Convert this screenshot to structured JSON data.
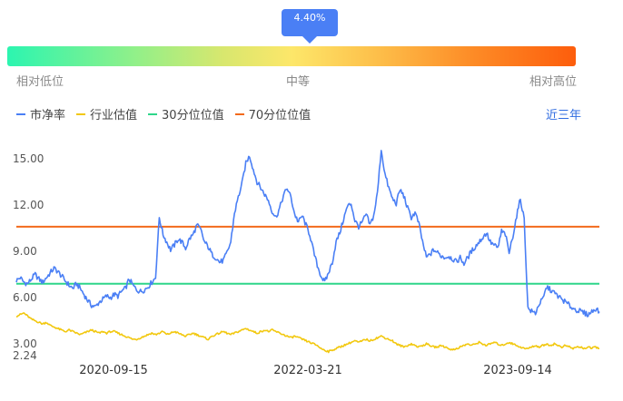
{
  "marker": {
    "value_label": "4.40%",
    "position_fraction": 0.53
  },
  "scale": {
    "low": "相对低位",
    "mid": "中等",
    "high": "相对高位"
  },
  "legend": [
    {
      "label": "市净率",
      "color": "#4a7ff5"
    },
    {
      "label": "行业估值",
      "color": "#f2c80f"
    },
    {
      "label": "30分位位值",
      "color": "#2ed68a"
    },
    {
      "label": "70分位位值",
      "color": "#f26a1b"
    }
  ],
  "period": "近三年",
  "chart_data": {
    "type": "line",
    "ylim": [
      2.24,
      16.0
    ],
    "y_ticks": [
      "2.24",
      "3.00",
      "6.00",
      "9.00",
      "12.00",
      "15.00"
    ],
    "x_ticks": [
      "2020-09-15",
      "2022-03-21",
      "2023-09-14"
    ],
    "hlines": [
      {
        "name": "30分位位值",
        "value": 6.9
      },
      {
        "name": "70分位位值",
        "value": 10.6
      }
    ],
    "series": [
      {
        "name": "市净率",
        "values": [
          7.1,
          7.3,
          7.0,
          6.9,
          7.2,
          7.5,
          7.2,
          7.0,
          7.3,
          7.6,
          7.9,
          7.7,
          7.4,
          7.1,
          6.8,
          6.6,
          6.9,
          6.6,
          6.2,
          5.8,
          5.5,
          5.4,
          5.7,
          5.9,
          6.1,
          6.0,
          6.2,
          6.1,
          6.4,
          6.6,
          7.2,
          6.8,
          6.5,
          6.4,
          6.5,
          6.7,
          7.0,
          7.3,
          11.2,
          10.1,
          9.6,
          9.1,
          9.4,
          9.8,
          9.6,
          9.2,
          9.8,
          10.1,
          10.7,
          10.4,
          9.6,
          9.3,
          8.8,
          8.6,
          8.3,
          8.4,
          8.9,
          9.6,
          11.5,
          12.5,
          13.4,
          14.7,
          15.2,
          14.3,
          13.5,
          13.1,
          12.7,
          12.3,
          11.6,
          11.2,
          11.8,
          12.6,
          13.1,
          12.5,
          11.4,
          10.9,
          11.3,
          10.7,
          10.1,
          9.0,
          8.1,
          7.4,
          7.0,
          7.6,
          8.3,
          9.6,
          10.2,
          11.1,
          11.9,
          12.1,
          11.0,
          10.6,
          10.9,
          11.4,
          10.7,
          11.3,
          12.8,
          15.6,
          14.0,
          13.1,
          12.4,
          12.1,
          13.0,
          12.6,
          11.8,
          11.2,
          11.5,
          10.8,
          9.6,
          8.6,
          8.8,
          9.1,
          8.9,
          8.7,
          8.6,
          8.7,
          8.5,
          8.3,
          8.6,
          8.2,
          8.6,
          9.0,
          9.3,
          9.6,
          9.9,
          10.2,
          9.6,
          9.4,
          9.2,
          10.3,
          10.1,
          8.9,
          10.0,
          11.3,
          12.4,
          11.1,
          5.3,
          5.1,
          5.0,
          5.6,
          5.9,
          6.7,
          6.5,
          6.3,
          6.1,
          5.9,
          5.7,
          5.5,
          5.3,
          5.2,
          5.1,
          5.0,
          4.9,
          5.1,
          5.3,
          5.1
        ]
      },
      {
        "name": "行业估值",
        "values": [
          4.8,
          4.9,
          5.0,
          4.8,
          4.6,
          4.5,
          4.4,
          4.3,
          4.4,
          4.2,
          4.1,
          4.0,
          3.9,
          3.8,
          3.9,
          3.8,
          3.7,
          3.6,
          3.7,
          3.8,
          3.9,
          3.8,
          3.7,
          3.8,
          3.7,
          3.8,
          3.8,
          3.7,
          3.6,
          3.5,
          3.4,
          3.3,
          3.3,
          3.4,
          3.5,
          3.6,
          3.7,
          3.6,
          3.7,
          3.8,
          3.6,
          3.7,
          3.8,
          3.7,
          3.6,
          3.5,
          3.6,
          3.7,
          3.6,
          3.5,
          3.4,
          3.3,
          3.5,
          3.6,
          3.7,
          3.8,
          3.7,
          3.6,
          3.7,
          3.8,
          3.9,
          4.0,
          3.9,
          3.8,
          3.7,
          3.8,
          3.9,
          3.8,
          3.9,
          3.8,
          3.7,
          3.6,
          3.5,
          3.4,
          3.5,
          3.4,
          3.3,
          3.2,
          3.1,
          3.0,
          2.9,
          2.7,
          2.6,
          2.5,
          2.6,
          2.7,
          2.8,
          2.9,
          3.0,
          3.1,
          3.2,
          3.1,
          3.2,
          3.3,
          3.2,
          3.3,
          3.4,
          3.5,
          3.4,
          3.3,
          3.2,
          3.0,
          2.9,
          2.8,
          2.9,
          3.0,
          2.9,
          2.8,
          2.9,
          3.0,
          2.9,
          2.8,
          2.8,
          2.9,
          2.8,
          2.7,
          2.6,
          2.7,
          2.8,
          2.9,
          3.0,
          2.9,
          3.0,
          3.1,
          3.0,
          2.9,
          3.0,
          3.1,
          3.0,
          2.9,
          3.0,
          3.1,
          3.0,
          2.9,
          2.8,
          2.7,
          2.7,
          2.8,
          2.9,
          2.8,
          2.9,
          3.0,
          2.9,
          3.0,
          2.9,
          2.8,
          2.9,
          2.8,
          2.7,
          2.8,
          2.8,
          2.7,
          2.8,
          2.7,
          2.8,
          2.7
        ]
      }
    ]
  }
}
